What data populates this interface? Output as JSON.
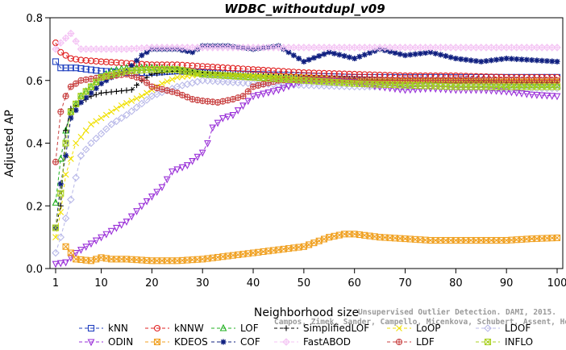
{
  "chart_data": {
    "type": "line",
    "title": "WDBC_withoutdupl_v09",
    "xlabel": "Neighborhood size",
    "ylabel": "Adjusted AP",
    "xlim": [
      1,
      100
    ],
    "ylim": [
      0,
      0.8
    ],
    "xticks": [
      1,
      10,
      20,
      30,
      40,
      50,
      60,
      70,
      80,
      90,
      100
    ],
    "yticks": [
      0.0,
      0.2,
      0.4,
      0.6,
      0.8
    ],
    "grid": false,
    "legend_position": "bottom",
    "watermark_lines": [
      "Unsupervised Outlier Detection. DAMI, 2015.",
      "Campos, Zimek, Sander, Campello, Micenkova, Schubert, Assent, Houle"
    ],
    "series": [
      {
        "name": "kNN",
        "color": "#1f3fbf",
        "marker": "square",
        "dash": "4,3",
        "points": [
          [
            1,
            0.66
          ],
          [
            2,
            0.64
          ],
          [
            5,
            0.64
          ],
          [
            10,
            0.63
          ],
          [
            15,
            0.625
          ],
          [
            20,
            0.625
          ],
          [
            25,
            0.63
          ],
          [
            30,
            0.625
          ],
          [
            40,
            0.62
          ],
          [
            50,
            0.615
          ],
          [
            60,
            0.61
          ],
          [
            70,
            0.61
          ],
          [
            80,
            0.61
          ],
          [
            90,
            0.61
          ],
          [
            100,
            0.61
          ]
        ]
      },
      {
        "name": "kNNW",
        "color": "#e02020",
        "marker": "circle",
        "dash": "4,3",
        "points": [
          [
            1,
            0.72
          ],
          [
            2,
            0.69
          ],
          [
            4,
            0.67
          ],
          [
            6,
            0.665
          ],
          [
            10,
            0.66
          ],
          [
            15,
            0.655
          ],
          [
            20,
            0.65
          ],
          [
            25,
            0.65
          ],
          [
            30,
            0.645
          ],
          [
            40,
            0.635
          ],
          [
            50,
            0.625
          ],
          [
            60,
            0.62
          ],
          [
            70,
            0.615
          ],
          [
            80,
            0.615
          ],
          [
            90,
            0.61
          ],
          [
            100,
            0.61
          ]
        ]
      },
      {
        "name": "LOF",
        "color": "#20b020",
        "marker": "triangle",
        "dash": "4,3",
        "points": [
          [
            1,
            0.21
          ],
          [
            2,
            0.35
          ],
          [
            3,
            0.44
          ],
          [
            4,
            0.5
          ],
          [
            6,
            0.55
          ],
          [
            8,
            0.58
          ],
          [
            10,
            0.61
          ],
          [
            12,
            0.63
          ],
          [
            15,
            0.64
          ],
          [
            20,
            0.64
          ],
          [
            25,
            0.635
          ],
          [
            30,
            0.62
          ],
          [
            40,
            0.61
          ],
          [
            50,
            0.6
          ],
          [
            60,
            0.595
          ],
          [
            70,
            0.59
          ],
          [
            80,
            0.59
          ],
          [
            90,
            0.585
          ],
          [
            100,
            0.585
          ]
        ]
      },
      {
        "name": "SimplifiedLOF",
        "color": "#000000",
        "marker": "plus",
        "dash": "4,3",
        "points": [
          [
            1,
            0.13
          ],
          [
            2,
            0.2
          ],
          [
            3,
            0.44
          ],
          [
            4,
            0.51
          ],
          [
            6,
            0.53
          ],
          [
            8,
            0.55
          ],
          [
            10,
            0.56
          ],
          [
            13,
            0.565
          ],
          [
            16,
            0.57
          ],
          [
            18,
            0.6
          ],
          [
            20,
            0.62
          ],
          [
            25,
            0.63
          ],
          [
            30,
            0.625
          ],
          [
            40,
            0.615
          ],
          [
            50,
            0.61
          ],
          [
            60,
            0.605
          ],
          [
            70,
            0.6
          ],
          [
            80,
            0.6
          ],
          [
            90,
            0.595
          ],
          [
            100,
            0.595
          ]
        ]
      },
      {
        "name": "LoOP",
        "color": "#f0e000",
        "marker": "x",
        "dash": "4,3",
        "points": [
          [
            1,
            0.1
          ],
          [
            2,
            0.18
          ],
          [
            3,
            0.3
          ],
          [
            5,
            0.4
          ],
          [
            8,
            0.46
          ],
          [
            10,
            0.48
          ],
          [
            14,
            0.52
          ],
          [
            18,
            0.55
          ],
          [
            22,
            0.59
          ],
          [
            25,
            0.61
          ],
          [
            30,
            0.62
          ],
          [
            40,
            0.615
          ],
          [
            50,
            0.61
          ],
          [
            60,
            0.6
          ],
          [
            70,
            0.6
          ],
          [
            80,
            0.6
          ],
          [
            90,
            0.6
          ],
          [
            100,
            0.6
          ]
        ]
      },
      {
        "name": "LDOF",
        "color": "#b8b8e8",
        "marker": "diamond",
        "dash": "4,3",
        "points": [
          [
            1,
            0.05
          ],
          [
            2,
            0.1
          ],
          [
            4,
            0.22
          ],
          [
            6,
            0.36
          ],
          [
            8,
            0.4
          ],
          [
            10,
            0.43
          ],
          [
            12,
            0.46
          ],
          [
            15,
            0.49
          ],
          [
            20,
            0.55
          ],
          [
            25,
            0.58
          ],
          [
            30,
            0.6
          ],
          [
            40,
            0.59
          ],
          [
            50,
            0.585
          ],
          [
            60,
            0.58
          ],
          [
            70,
            0.58
          ],
          [
            80,
            0.58
          ],
          [
            90,
            0.575
          ],
          [
            100,
            0.575
          ]
        ]
      },
      {
        "name": "ODIN",
        "color": "#9a30d8",
        "marker": "triangle-down",
        "dash": "4,3",
        "points": [
          [
            1,
            0.015
          ],
          [
            3,
            0.02
          ],
          [
            5,
            0.05
          ],
          [
            8,
            0.08
          ],
          [
            10,
            0.1
          ],
          [
            12,
            0.12
          ],
          [
            15,
            0.15
          ],
          [
            18,
            0.2
          ],
          [
            20,
            0.23
          ],
          [
            22,
            0.26
          ],
          [
            24,
            0.31
          ],
          [
            27,
            0.33
          ],
          [
            30,
            0.37
          ],
          [
            31,
            0.4
          ],
          [
            32,
            0.45
          ],
          [
            34,
            0.48
          ],
          [
            36,
            0.49
          ],
          [
            38,
            0.52
          ],
          [
            40,
            0.55
          ],
          [
            45,
            0.57
          ],
          [
            50,
            0.6
          ],
          [
            55,
            0.6
          ],
          [
            60,
            0.595
          ],
          [
            65,
            0.58
          ],
          [
            70,
            0.57
          ],
          [
            75,
            0.575
          ],
          [
            80,
            0.57
          ],
          [
            85,
            0.57
          ],
          [
            90,
            0.565
          ],
          [
            95,
            0.555
          ],
          [
            100,
            0.55
          ]
        ]
      },
      {
        "name": "KDEOS",
        "color": "#f0a020",
        "marker": "square-x",
        "dash": "4,3",
        "points": [
          [
            3,
            0.07
          ],
          [
            5,
            0.03
          ],
          [
            8,
            0.025
          ],
          [
            10,
            0.035
          ],
          [
            12,
            0.03
          ],
          [
            15,
            0.03
          ],
          [
            20,
            0.025
          ],
          [
            25,
            0.025
          ],
          [
            30,
            0.03
          ],
          [
            35,
            0.04
          ],
          [
            40,
            0.05
          ],
          [
            45,
            0.06
          ],
          [
            50,
            0.07
          ],
          [
            55,
            0.1
          ],
          [
            58,
            0.11
          ],
          [
            60,
            0.11
          ],
          [
            65,
            0.1
          ],
          [
            70,
            0.095
          ],
          [
            75,
            0.09
          ],
          [
            80,
            0.09
          ],
          [
            85,
            0.09
          ],
          [
            90,
            0.09
          ],
          [
            95,
            0.095
          ],
          [
            100,
            0.098
          ]
        ]
      },
      {
        "name": "COF",
        "color": "#102080",
        "marker": "asterisk",
        "dash": "4,3",
        "points": [
          [
            1,
            0.13
          ],
          [
            2,
            0.27
          ],
          [
            3,
            0.36
          ],
          [
            4,
            0.48
          ],
          [
            6,
            0.53
          ],
          [
            8,
            0.56
          ],
          [
            10,
            0.59
          ],
          [
            12,
            0.61
          ],
          [
            15,
            0.63
          ],
          [
            18,
            0.68
          ],
          [
            20,
            0.7
          ],
          [
            25,
            0.7
          ],
          [
            28,
            0.69
          ],
          [
            30,
            0.71
          ],
          [
            35,
            0.71
          ],
          [
            40,
            0.7
          ],
          [
            45,
            0.71
          ],
          [
            48,
            0.68
          ],
          [
            50,
            0.66
          ],
          [
            55,
            0.69
          ],
          [
            60,
            0.67
          ],
          [
            65,
            0.7
          ],
          [
            70,
            0.68
          ],
          [
            75,
            0.69
          ],
          [
            80,
            0.67
          ],
          [
            85,
            0.66
          ],
          [
            90,
            0.67
          ],
          [
            95,
            0.665
          ],
          [
            100,
            0.66
          ]
        ]
      },
      {
        "name": "FastABOD",
        "color": "#f4c4f4",
        "marker": "diamond-x",
        "dash": "4,3",
        "points": [
          [
            1,
            0.7
          ],
          [
            2,
            0.72
          ],
          [
            4,
            0.75
          ],
          [
            6,
            0.7
          ],
          [
            10,
            0.7
          ],
          [
            15,
            0.7
          ],
          [
            20,
            0.705
          ],
          [
            30,
            0.705
          ],
          [
            40,
            0.705
          ],
          [
            50,
            0.705
          ],
          [
            60,
            0.705
          ],
          [
            70,
            0.705
          ],
          [
            80,
            0.705
          ],
          [
            90,
            0.705
          ],
          [
            100,
            0.705
          ]
        ]
      },
      {
        "name": "LDF",
        "color": "#c84040",
        "marker": "circle-plus",
        "dash": "4,3",
        "points": [
          [
            1,
            0.34
          ],
          [
            2,
            0.5
          ],
          [
            3,
            0.55
          ],
          [
            4,
            0.58
          ],
          [
            6,
            0.6
          ],
          [
            10,
            0.61
          ],
          [
            15,
            0.62
          ],
          [
            18,
            0.605
          ],
          [
            20,
            0.58
          ],
          [
            25,
            0.56
          ],
          [
            28,
            0.54
          ],
          [
            30,
            0.535
          ],
          [
            33,
            0.53
          ],
          [
            36,
            0.54
          ],
          [
            38,
            0.55
          ],
          [
            40,
            0.58
          ],
          [
            45,
            0.6
          ],
          [
            50,
            0.605
          ],
          [
            60,
            0.6
          ],
          [
            70,
            0.6
          ],
          [
            80,
            0.6
          ],
          [
            90,
            0.6
          ],
          [
            100,
            0.6
          ]
        ]
      },
      {
        "name": "INFLO",
        "color": "#a8d020",
        "marker": "square-x",
        "dash": "4,3",
        "points": [
          [
            1,
            0.13
          ],
          [
            2,
            0.24
          ],
          [
            3,
            0.4
          ],
          [
            4,
            0.5
          ],
          [
            6,
            0.55
          ],
          [
            8,
            0.58
          ],
          [
            10,
            0.61
          ],
          [
            15,
            0.63
          ],
          [
            20,
            0.635
          ],
          [
            25,
            0.635
          ],
          [
            30,
            0.62
          ],
          [
            40,
            0.61
          ],
          [
            50,
            0.6
          ],
          [
            60,
            0.59
          ],
          [
            70,
            0.585
          ],
          [
            80,
            0.58
          ],
          [
            90,
            0.58
          ],
          [
            100,
            0.58
          ]
        ]
      }
    ]
  }
}
